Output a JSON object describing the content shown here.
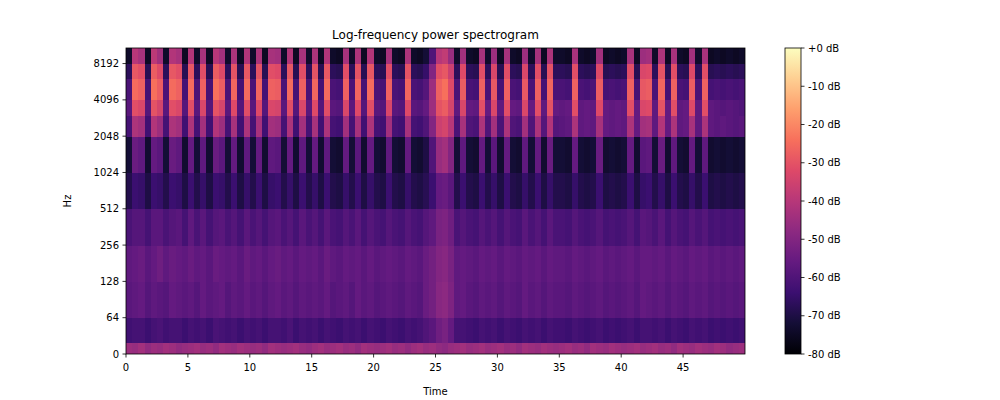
{
  "chart_data": {
    "type": "heatmap",
    "title": "Log-frequency power spectrogram",
    "x_label": "Time",
    "y_label": "Hz",
    "log": "y",
    "color": "magma",
    "xlim": [
      0,
      50
    ],
    "xticks": [
      0,
      5,
      10,
      15,
      20,
      25,
      30,
      35,
      40,
      45
    ],
    "ylim": [
      0,
      11025
    ],
    "yticks": [
      0,
      64,
      128,
      256,
      512,
      1024,
      2048,
      4096,
      8192
    ],
    "x_edges": [
      0,
      0.5,
      1,
      1.5,
      2,
      2.5,
      3,
      3.5,
      4,
      4.5,
      5,
      5.5,
      6,
      6.5,
      7,
      7.5,
      8,
      8.5,
      9,
      9.5,
      10,
      10.5,
      11,
      11.5,
      12,
      12.5,
      13,
      13.5,
      14,
      14.5,
      15,
      15.5,
      16,
      16.5,
      17,
      17.5,
      18,
      18.5,
      19,
      19.5,
      20,
      20.5,
      21,
      21.5,
      22,
      22.5,
      23,
      23.5,
      24,
      24.5,
      25,
      25.5,
      26,
      26.5,
      27,
      27.5,
      28,
      28.5,
      29,
      29.5,
      30,
      30.5,
      31,
      31.5,
      32,
      32.5,
      33,
      33.5,
      34,
      34.5,
      35,
      35.5,
      36,
      36.5,
      37,
      37.5,
      38,
      38.5,
      39,
      39.5,
      40,
      40.5,
      41,
      41.5,
      42,
      42.5,
      43,
      43.5,
      44,
      44.5,
      45,
      45.5,
      46,
      46.5,
      47,
      47.5,
      48,
      48.5,
      49,
      49.5,
      50
    ],
    "y_edges": [
      0,
      20,
      64,
      128,
      256,
      512,
      1024,
      2048,
      3072,
      4096,
      6144,
      8192,
      11025
    ],
    "cells": [
      [
        -45,
        -46,
        -44,
        -47,
        -45,
        -46,
        -44,
        -45,
        -47,
        -46,
        -45,
        -44,
        -46,
        -45,
        -47,
        -44,
        -45,
        -46,
        -44,
        -45,
        -46,
        -45,
        -47,
        -44,
        -45,
        -46,
        -45,
        -44,
        -46,
        -47,
        -45,
        -44,
        -46,
        -45,
        -44,
        -46,
        -45,
        -47,
        -44,
        -45,
        -46,
        -45,
        -44,
        -46,
        -45,
        -47,
        -45,
        -44,
        -46,
        -45,
        -47,
        -48,
        -46,
        -45,
        -44,
        -46,
        -45,
        -44,
        -46,
        -45,
        -44,
        -46,
        -45,
        -47,
        -44,
        -45,
        -46,
        -44,
        -45,
        -46,
        -45,
        -44,
        -46,
        -45,
        -47,
        -44,
        -45,
        -46,
        -44,
        -45,
        -46,
        -45,
        -44,
        -46,
        -45,
        -44,
        -46,
        -45,
        -47,
        -44,
        -45,
        -46,
        -44,
        -45,
        -46,
        -44,
        -45,
        -47,
        -46,
        -45
      ],
      [
        -63,
        -62,
        -62,
        -64,
        -62,
        -61,
        -63,
        -62,
        -62,
        -64,
        -62,
        -63,
        -62,
        -64,
        -61,
        -62,
        -63,
        -62,
        -64,
        -62,
        -63,
        -62,
        -64,
        -62,
        -62,
        -63,
        -61,
        -64,
        -62,
        -63,
        -62,
        -64,
        -62,
        -63,
        -64,
        -62,
        -63,
        -62,
        -64,
        -62,
        -63,
        -64,
        -62,
        -63,
        -64,
        -62,
        -63,
        -62,
        -60,
        -58,
        -54,
        -52,
        -56,
        -62,
        -62,
        -63,
        -64,
        -62,
        -63,
        -62,
        -64,
        -62,
        -63,
        -64,
        -62,
        -63,
        -62,
        -64,
        -62,
        -63,
        -63,
        -64,
        -62,
        -63,
        -64,
        -63,
        -62,
        -64,
        -63,
        -64,
        -63,
        -62,
        -64,
        -62,
        -62,
        -63,
        -62,
        -64,
        -62,
        -63,
        -64,
        -62,
        -63,
        -62,
        -64,
        -63,
        -64,
        -63,
        -64,
        -63
      ],
      [
        -58,
        -57,
        -56,
        -59,
        -57,
        -58,
        -59,
        -56,
        -57,
        -58,
        -57,
        -59,
        -56,
        -58,
        -57,
        -56,
        -59,
        -57,
        -58,
        -56,
        -58,
        -57,
        -59,
        -57,
        -56,
        -58,
        -57,
        -59,
        -57,
        -58,
        -57,
        -58,
        -56,
        -59,
        -58,
        -57,
        -59,
        -56,
        -58,
        -57,
        -59,
        -58,
        -57,
        -58,
        -59,
        -57,
        -58,
        -59,
        -55,
        -53,
        -49,
        -48,
        -51,
        -57,
        -56,
        -58,
        -59,
        -57,
        -58,
        -57,
        -59,
        -57,
        -58,
        -59,
        -56,
        -58,
        -57,
        -59,
        -57,
        -58,
        -58,
        -59,
        -57,
        -58,
        -59,
        -58,
        -57,
        -59,
        -58,
        -59,
        -58,
        -57,
        -59,
        -56,
        -57,
        -58,
        -57,
        -59,
        -57,
        -58,
        -59,
        -57,
        -58,
        -57,
        -59,
        -58,
        -59,
        -58,
        -59,
        -58
      ],
      [
        -57,
        -56,
        -55,
        -58,
        -56,
        -54,
        -57,
        -55,
        -56,
        -57,
        -55,
        -57,
        -56,
        -58,
        -55,
        -56,
        -57,
        -56,
        -58,
        -55,
        -57,
        -56,
        -58,
        -56,
        -55,
        -57,
        -56,
        -58,
        -56,
        -57,
        -56,
        -58,
        -55,
        -57,
        -58,
        -56,
        -57,
        -56,
        -58,
        -56,
        -58,
        -57,
        -56,
        -57,
        -58,
        -56,
        -57,
        -58,
        -55,
        -53,
        -50,
        -49,
        -52,
        -57,
        -56,
        -57,
        -58,
        -56,
        -57,
        -56,
        -58,
        -56,
        -57,
        -58,
        -56,
        -57,
        -56,
        -58,
        -56,
        -57,
        -57,
        -58,
        -56,
        -57,
        -58,
        -57,
        -56,
        -58,
        -57,
        -58,
        -57,
        -56,
        -58,
        -56,
        -56,
        -57,
        -56,
        -58,
        -56,
        -57,
        -58,
        -56,
        -57,
        -56,
        -58,
        -57,
        -58,
        -57,
        -58,
        -57
      ],
      [
        -61,
        -59,
        -59,
        -62,
        -58,
        -58,
        -61,
        -59,
        -58,
        -62,
        -57,
        -61,
        -58,
        -62,
        -59,
        -58,
        -61,
        -59,
        -62,
        -58,
        -61,
        -59,
        -62,
        -59,
        -58,
        -61,
        -59,
        -62,
        -58,
        -61,
        -59,
        -62,
        -58,
        -61,
        -62,
        -59,
        -61,
        -58,
        -62,
        -59,
        -61,
        -62,
        -59,
        -61,
        -62,
        -59,
        -61,
        -62,
        -59,
        -57,
        -52,
        -51,
        -54,
        -61,
        -59,
        -61,
        -62,
        -59,
        -61,
        -59,
        -62,
        -59,
        -61,
        -62,
        -58,
        -61,
        -59,
        -62,
        -58,
        -61,
        -61,
        -62,
        -59,
        -61,
        -62,
        -61,
        -59,
        -62,
        -61,
        -62,
        -61,
        -59,
        -62,
        -58,
        -59,
        -61,
        -58,
        -62,
        -59,
        -61,
        -62,
        -59,
        -61,
        -59,
        -62,
        -61,
        -62,
        -61,
        -62,
        -61
      ],
      [
        -69,
        -64,
        -65,
        -70,
        -64,
        -65,
        -69,
        -64,
        -65,
        -70,
        -64,
        -69,
        -65,
        -70,
        -64,
        -65,
        -69,
        -64,
        -70,
        -65,
        -69,
        -64,
        -70,
        -65,
        -64,
        -69,
        -65,
        -70,
        -64,
        -69,
        -65,
        -70,
        -64,
        -69,
        -70,
        -65,
        -69,
        -64,
        -70,
        -65,
        -69,
        -70,
        -64,
        -69,
        -70,
        -65,
        -69,
        -70,
        -68,
        -64,
        -56,
        -55,
        -58,
        -69,
        -64,
        -69,
        -70,
        -64,
        -69,
        -65,
        -70,
        -64,
        -69,
        -70,
        -65,
        -69,
        -64,
        -70,
        -65,
        -69,
        -69,
        -70,
        -65,
        -69,
        -70,
        -69,
        -64,
        -70,
        -69,
        -70,
        -69,
        -64,
        -70,
        -65,
        -64,
        -69,
        -65,
        -70,
        -64,
        -69,
        -70,
        -65,
        -69,
        -64,
        -70,
        -69,
        -70,
        -69,
        -70,
        -69
      ],
      [
        -72,
        -55,
        -57,
        -73,
        -56,
        -58,
        -72,
        -55,
        -57,
        -73,
        -56,
        -72,
        -57,
        -73,
        -55,
        -58,
        -72,
        -56,
        -73,
        -57,
        -72,
        -56,
        -73,
        -57,
        -58,
        -72,
        -56,
        -73,
        -57,
        -72,
        -56,
        -73,
        -57,
        -72,
        -73,
        -56,
        -72,
        -58,
        -73,
        -56,
        -72,
        -73,
        -57,
        -72,
        -73,
        -56,
        -72,
        -73,
        -70,
        -60,
        -46,
        -44,
        -50,
        -72,
        -57,
        -72,
        -73,
        -56,
        -72,
        -58,
        -73,
        -56,
        -72,
        -73,
        -57,
        -72,
        -56,
        -73,
        -55,
        -72,
        -72,
        -73,
        -56,
        -72,
        -73,
        -72,
        -55,
        -73,
        -72,
        -73,
        -72,
        -56,
        -73,
        -58,
        -57,
        -72,
        -55,
        -73,
        -57,
        -72,
        -73,
        -56,
        -72,
        -57,
        -73,
        -72,
        -73,
        -72,
        -73,
        -72
      ],
      [
        -62,
        -42,
        -44,
        -63,
        -41,
        -45,
        -62,
        -42,
        -44,
        -63,
        -42,
        -62,
        -44,
        -63,
        -41,
        -45,
        -62,
        -43,
        -63,
        -42,
        -62,
        -43,
        -63,
        -44,
        -45,
        -62,
        -42,
        -63,
        -44,
        -62,
        -43,
        -63,
        -42,
        -62,
        -63,
        -44,
        -62,
        -43,
        -63,
        -42,
        -62,
        -63,
        -44,
        -62,
        -63,
        -43,
        -62,
        -63,
        -60,
        -50,
        -36,
        -34,
        -40,
        -61,
        -43,
        -60,
        -61,
        -42,
        -60,
        -44,
        -61,
        -42,
        -60,
        -61,
        -44,
        -60,
        -42,
        -59,
        -41,
        -59,
        -58,
        -57,
        -42,
        -57,
        -56,
        -57,
        -43,
        -56,
        -57,
        -56,
        -57,
        -42,
        -56,
        -44,
        -43,
        -57,
        -41,
        -56,
        -42,
        -57,
        -56,
        -43,
        -57,
        -42,
        -57,
        -58,
        -57,
        -58,
        -59,
        -58
      ],
      [
        -58,
        -31,
        -33,
        -59,
        -30,
        -34,
        -58,
        -31,
        -33,
        -59,
        -31,
        -58,
        -33,
        -59,
        -30,
        -34,
        -58,
        -32,
        -59,
        -31,
        -58,
        -32,
        -59,
        -33,
        -34,
        -58,
        -31,
        -59,
        -33,
        -58,
        -32,
        -59,
        -31,
        -58,
        -59,
        -33,
        -58,
        -32,
        -59,
        -31,
        -58,
        -59,
        -33,
        -58,
        -59,
        -32,
        -58,
        -59,
        -56,
        -45,
        -30,
        -28,
        -34,
        -57,
        -33,
        -56,
        -57,
        -31,
        -56,
        -33,
        -57,
        -31,
        -56,
        -57,
        -33,
        -56,
        -31,
        -57,
        -30,
        -56,
        -57,
        -56,
        -31,
        -57,
        -56,
        -57,
        -32,
        -56,
        -57,
        -56,
        -57,
        -31,
        -56,
        -33,
        -32,
        -57,
        -30,
        -56,
        -31,
        -57,
        -56,
        -32,
        -57,
        -31,
        -57,
        -58,
        -59,
        -58,
        -59,
        -60
      ],
      [
        -61,
        -25,
        -27,
        -62,
        -24,
        -28,
        -61,
        -25,
        -27,
        -62,
        -25,
        -61,
        -27,
        -62,
        -24,
        -28,
        -61,
        -26,
        -62,
        -25,
        -61,
        -26,
        -62,
        -27,
        -28,
        -61,
        -25,
        -62,
        -27,
        -61,
        -26,
        -62,
        -25,
        -61,
        -62,
        -27,
        -61,
        -26,
        -62,
        -25,
        -61,
        -62,
        -27,
        -61,
        -62,
        -26,
        -61,
        -62,
        -59,
        -45,
        -27,
        -24,
        -32,
        -61,
        -28,
        -61,
        -62,
        -27,
        -61,
        -29,
        -62,
        -27,
        -61,
        -62,
        -29,
        -61,
        -27,
        -62,
        -26,
        -61,
        -61,
        -62,
        -27,
        -61,
        -62,
        -61,
        -28,
        -62,
        -61,
        -62,
        -61,
        -27,
        -62,
        -29,
        -28,
        -61,
        -26,
        -62,
        -27,
        -61,
        -62,
        -28,
        -61,
        -27,
        -62,
        -61,
        -62,
        -61,
        -62,
        -61
      ],
      [
        -67,
        -29,
        -31,
        -68,
        -28,
        -32,
        -67,
        -29,
        -31,
        -68,
        -29,
        -67,
        -31,
        -68,
        -28,
        -32,
        -67,
        -30,
        -68,
        -29,
        -67,
        -30,
        -68,
        -31,
        -32,
        -67,
        -29,
        -68,
        -31,
        -67,
        -30,
        -68,
        -29,
        -67,
        -68,
        -31,
        -67,
        -30,
        -68,
        -29,
        -67,
        -68,
        -31,
        -67,
        -68,
        -30,
        -67,
        -68,
        -65,
        -50,
        -31,
        -29,
        -36,
        -67,
        -32,
        -67,
        -68,
        -31,
        -67,
        -33,
        -68,
        -31,
        -67,
        -68,
        -33,
        -67,
        -31,
        -68,
        -30,
        -67,
        -67,
        -68,
        -31,
        -67,
        -68,
        -67,
        -32,
        -68,
        -67,
        -68,
        -67,
        -31,
        -68,
        -33,
        -32,
        -67,
        -30,
        -68,
        -31,
        -67,
        -68,
        -32,
        -67,
        -31,
        -68,
        -67,
        -68,
        -67,
        -68,
        -67
      ],
      [
        -74,
        -40,
        -43,
        -75,
        -39,
        -44,
        -74,
        -41,
        -43,
        -75,
        -41,
        -74,
        -43,
        -75,
        -40,
        -44,
        -74,
        -42,
        -75,
        -41,
        -74,
        -42,
        -75,
        -43,
        -44,
        -74,
        -41,
        -75,
        -43,
        -74,
        -42,
        -75,
        -41,
        -74,
        -75,
        -43,
        -74,
        -42,
        -75,
        -41,
        -74,
        -75,
        -43,
        -74,
        -75,
        -42,
        -74,
        -75,
        -72,
        -60,
        -40,
        -38,
        -46,
        -74,
        -44,
        -74,
        -75,
        -43,
        -74,
        -45,
        -75,
        -43,
        -74,
        -75,
        -45,
        -74,
        -43,
        -75,
        -42,
        -74,
        -74,
        -75,
        -43,
        -74,
        -75,
        -74,
        -44,
        -75,
        -74,
        -75,
        -74,
        -43,
        -75,
        -45,
        -44,
        -74,
        -42,
        -75,
        -43,
        -74,
        -75,
        -44,
        -74,
        -43,
        -75,
        -74,
        -75,
        -74,
        -75,
        -74
      ]
    ],
    "colorbar": {
      "range": [
        -80,
        0
      ],
      "ticks": [
        {
          "value": 0,
          "label": "+0 dB"
        },
        {
          "value": -10,
          "label": "-10 dB"
        },
        {
          "value": -20,
          "label": "-20 dB"
        },
        {
          "value": -30,
          "label": "-30 dB"
        },
        {
          "value": -40,
          "label": "-40 dB"
        },
        {
          "value": -50,
          "label": "-50 dB"
        },
        {
          "value": -60,
          "label": "-60 dB"
        },
        {
          "value": -70,
          "label": "-70 dB"
        },
        {
          "value": -80,
          "label": "-80 dB"
        }
      ]
    }
  }
}
